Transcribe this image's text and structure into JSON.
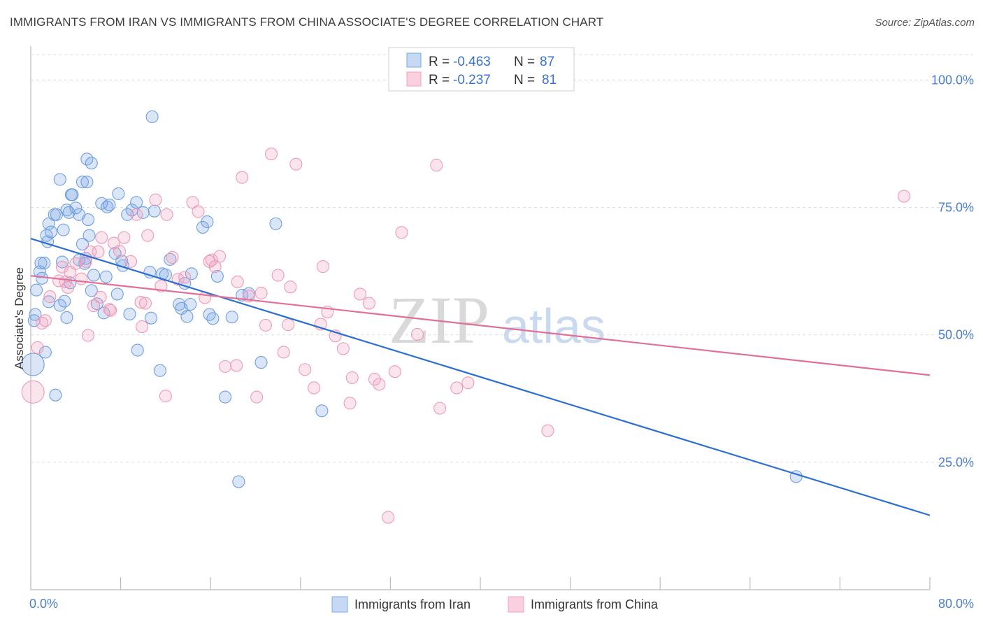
{
  "header": {
    "title": "IMMIGRANTS FROM IRAN VS IMMIGRANTS FROM CHINA ASSOCIATE'S DEGREE CORRELATION CHART",
    "source": "Source: ZipAtlas.com"
  },
  "watermark": {
    "part1": "ZIP",
    "part2": "atlas"
  },
  "legend_box": {
    "rows": [
      {
        "r_label": "R =",
        "r_value": "-0.463",
        "n_label": "N =",
        "n_value": "87"
      },
      {
        "r_label": "R =",
        "r_value": "-0.237",
        "n_label": "N =",
        "n_value": "81"
      }
    ]
  },
  "bottom_legend": [
    "Immigrants from Iran",
    "Immigrants from China"
  ],
  "colors": {
    "iran": "#7aa7e6",
    "iran_line": "#2b6fd1",
    "china": "#f2a3bd",
    "china_line": "#e0709a",
    "tick_text": "#4a7fd0"
  },
  "chart_data": {
    "type": "scatter",
    "title": "IMMIGRANTS FROM IRAN VS IMMIGRANTS FROM CHINA ASSOCIATE'S DEGREE CORRELATION CHART",
    "xlabel": "",
    "ylabel": "Associate's Degree",
    "xlim": [
      0,
      80
    ],
    "ylim": [
      0,
      105
    ],
    "x_tick_labels": [
      "0.0%",
      "80.0%"
    ],
    "y_ticks": [
      25,
      50,
      75,
      100
    ],
    "y_tick_labels": [
      "25.0%",
      "50.0%",
      "75.0%",
      "100.0%"
    ],
    "grid": true,
    "legend_position": "top-center",
    "series": [
      {
        "name": "Immigrants from Iran",
        "r": -0.463,
        "n": 87,
        "trend": {
          "x": [
            0,
            80
          ],
          "y": [
            68.9,
            14.6
          ]
        },
        "points": [
          [
            0.4,
            54.0
          ],
          [
            0.3,
            52.8
          ],
          [
            0.2,
            44.2
          ],
          [
            0.5,
            58.8
          ],
          [
            0.8,
            62.4
          ],
          [
            1.0,
            61.1
          ],
          [
            1.2,
            64.1
          ],
          [
            0.9,
            64.1
          ],
          [
            1.4,
            69.5
          ],
          [
            1.5,
            68.3
          ],
          [
            1.6,
            71.8
          ],
          [
            1.8,
            70.2
          ],
          [
            2.1,
            73.6
          ],
          [
            2.3,
            73.6
          ],
          [
            2.6,
            80.5
          ],
          [
            2.9,
            70.6
          ],
          [
            3.2,
            74.5
          ],
          [
            3.4,
            74.0
          ],
          [
            3.6,
            77.5
          ],
          [
            3.7,
            77.5
          ],
          [
            4.0,
            74.9
          ],
          [
            4.3,
            73.6
          ],
          [
            4.6,
            80.0
          ],
          [
            5.0,
            80.0
          ],
          [
            5.1,
            72.6
          ],
          [
            5.2,
            69.5
          ],
          [
            5.0,
            84.5
          ],
          [
            5.4,
            83.7
          ],
          [
            4.9,
            65.0
          ],
          [
            4.6,
            67.8
          ],
          [
            6.3,
            75.8
          ],
          [
            6.8,
            75.1
          ],
          [
            7.0,
            75.5
          ],
          [
            7.8,
            77.7
          ],
          [
            7.5,
            66.0
          ],
          [
            8.2,
            63.6
          ],
          [
            8.6,
            73.6
          ],
          [
            9.0,
            74.5
          ],
          [
            9.4,
            76.0
          ],
          [
            10.0,
            74.0
          ],
          [
            10.8,
            92.8
          ],
          [
            11.0,
            74.3
          ],
          [
            10.6,
            62.3
          ],
          [
            11.7,
            62.0
          ],
          [
            12.0,
            61.8
          ],
          [
            13.2,
            56.0
          ],
          [
            13.9,
            53.6
          ],
          [
            14.3,
            62.0
          ],
          [
            15.3,
            71.1
          ],
          [
            15.7,
            72.2
          ],
          [
            16.2,
            53.2
          ],
          [
            17.3,
            37.8
          ],
          [
            18.8,
            57.8
          ],
          [
            18.5,
            21.2
          ],
          [
            19.4,
            58.1
          ],
          [
            20.5,
            44.6
          ],
          [
            21.8,
            71.8
          ],
          [
            25.9,
            35.1
          ],
          [
            1.3,
            46.6
          ],
          [
            2.6,
            55.8
          ],
          [
            3.0,
            56.6
          ],
          [
            3.2,
            53.4
          ],
          [
            4.8,
            64.0
          ],
          [
            5.4,
            58.7
          ],
          [
            5.9,
            56.1
          ],
          [
            6.7,
            61.4
          ],
          [
            7.7,
            58.0
          ],
          [
            8.1,
            64.5
          ],
          [
            9.5,
            47.0
          ],
          [
            10.7,
            53.3
          ],
          [
            11.5,
            43.0
          ],
          [
            12.4,
            64.8
          ],
          [
            13.4,
            55.2
          ],
          [
            14.2,
            56.0
          ],
          [
            16.6,
            61.5
          ],
          [
            17.9,
            53.5
          ],
          [
            2.8,
            64.3
          ],
          [
            3.5,
            60.2
          ],
          [
            4.3,
            64.7
          ],
          [
            5.6,
            61.7
          ],
          [
            6.5,
            54.3
          ],
          [
            8.8,
            54.1
          ],
          [
            2.2,
            38.2
          ],
          [
            1.6,
            56.5
          ],
          [
            68.1,
            22.2
          ],
          [
            13.7,
            60.1
          ],
          [
            15.9,
            54.0
          ]
        ]
      },
      {
        "name": "Immigrants from China",
        "r": -0.237,
        "n": 81,
        "trend": {
          "x": [
            0,
            80
          ],
          "y": [
            61.6,
            42.1
          ]
        },
        "points": [
          [
            0.2,
            38.8
          ],
          [
            0.6,
            47.5
          ],
          [
            1.0,
            52.3
          ],
          [
            1.3,
            52.8
          ],
          [
            1.7,
            57.5
          ],
          [
            2.5,
            60.6
          ],
          [
            2.8,
            63.3
          ],
          [
            3.1,
            60.4
          ],
          [
            3.5,
            62.3
          ],
          [
            4.0,
            64.0
          ],
          [
            4.5,
            61.0
          ],
          [
            4.9,
            64.4
          ],
          [
            5.3,
            66.3
          ],
          [
            5.6,
            55.7
          ],
          [
            6.0,
            66.3
          ],
          [
            6.3,
            69.1
          ],
          [
            7.0,
            55.0
          ],
          [
            7.4,
            68.0
          ],
          [
            7.9,
            66.4
          ],
          [
            8.3,
            69.1
          ],
          [
            8.9,
            64.4
          ],
          [
            9.4,
            73.6
          ],
          [
            9.8,
            56.4
          ],
          [
            10.4,
            69.5
          ],
          [
            11.1,
            76.5
          ],
          [
            11.6,
            59.6
          ],
          [
            12.1,
            73.6
          ],
          [
            12.6,
            65.2
          ],
          [
            13.1,
            60.9
          ],
          [
            13.7,
            61.3
          ],
          [
            14.4,
            76.0
          ],
          [
            14.9,
            74.2
          ],
          [
            15.5,
            57.3
          ],
          [
            15.9,
            64.4
          ],
          [
            16.4,
            63.4
          ],
          [
            16.8,
            65.4
          ],
          [
            17.3,
            43.8
          ],
          [
            18.4,
            60.4
          ],
          [
            18.8,
            80.9
          ],
          [
            19.4,
            57.6
          ],
          [
            20.1,
            37.8
          ],
          [
            20.5,
            58.2
          ],
          [
            21.4,
            85.5
          ],
          [
            22.0,
            61.7
          ],
          [
            22.5,
            46.6
          ],
          [
            22.9,
            52.0
          ],
          [
            23.6,
            83.5
          ],
          [
            24.4,
            43.2
          ],
          [
            25.2,
            39.6
          ],
          [
            26.0,
            63.4
          ],
          [
            26.4,
            54.5
          ],
          [
            27.1,
            49.8
          ],
          [
            27.8,
            47.3
          ],
          [
            28.6,
            41.6
          ],
          [
            29.3,
            58.0
          ],
          [
            30.1,
            56.2
          ],
          [
            30.6,
            41.3
          ],
          [
            31.0,
            40.3
          ],
          [
            31.8,
            14.2
          ],
          [
            32.4,
            42.8
          ],
          [
            33.0,
            70.1
          ],
          [
            34.4,
            50.1
          ],
          [
            36.1,
            83.3
          ],
          [
            36.4,
            35.6
          ],
          [
            37.9,
            39.6
          ],
          [
            38.9,
            40.6
          ],
          [
            46.0,
            31.2
          ],
          [
            77.7,
            77.2
          ],
          [
            5.1,
            49.9
          ],
          [
            7.1,
            54.8
          ],
          [
            9.9,
            51.6
          ],
          [
            12.0,
            38.0
          ],
          [
            16.1,
            64.7
          ],
          [
            18.3,
            44.0
          ],
          [
            20.9,
            51.9
          ],
          [
            23.1,
            59.4
          ],
          [
            25.8,
            52.1
          ],
          [
            28.4,
            36.6
          ],
          [
            3.3,
            59.3
          ],
          [
            6.2,
            57.4
          ],
          [
            10.2,
            56.2
          ]
        ]
      }
    ]
  }
}
